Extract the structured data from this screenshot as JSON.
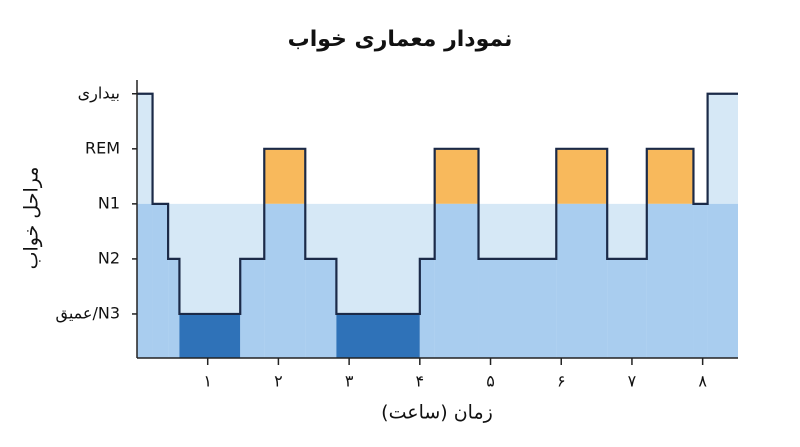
{
  "chart_data": {
    "type": "hypnogram",
    "title": "نمودار معماری خواب",
    "x_label": "زمان (ساعت)",
    "y_label": "مراحل خواب",
    "x": [
      0,
      0.22,
      0.44,
      0.6,
      1.46,
      1.8,
      2.38,
      2.82,
      4.0,
      4.21,
      4.83,
      5.93,
      6.65,
      7.21,
      7.87,
      8.07
    ],
    "values": [
      4,
      2,
      1,
      0,
      1,
      3,
      1,
      0,
      1,
      3,
      1,
      3,
      1,
      3,
      2,
      4
    ],
    "xlim": [
      0,
      8.5
    ],
    "ylim": [
      -0.8,
      4.25
    ],
    "xticks": [
      {
        "value": 1,
        "label": "۱"
      },
      {
        "value": 2,
        "label": "۲"
      },
      {
        "value": 3,
        "label": "۳"
      },
      {
        "value": 4,
        "label": "۴"
      },
      {
        "value": 5,
        "label": "۵"
      },
      {
        "value": 6,
        "label": "۶"
      },
      {
        "value": 7,
        "label": "۷"
      },
      {
        "value": 8,
        "label": "۸"
      }
    ],
    "yticks": [
      {
        "value": 4,
        "label": "بیداری"
      },
      {
        "value": 3,
        "label": "REM"
      },
      {
        "value": 2,
        "label": "N1"
      },
      {
        "value": 1,
        "label": "N2"
      },
      {
        "value": 0,
        "label": "عمیق/N3"
      }
    ],
    "colors": {
      "line": "#1b2a48",
      "light": "#d6e8f6",
      "medium": "#a9cdef",
      "deep": "#2f72b8",
      "rem": "#f8b95c",
      "axis": "#222222"
    }
  }
}
